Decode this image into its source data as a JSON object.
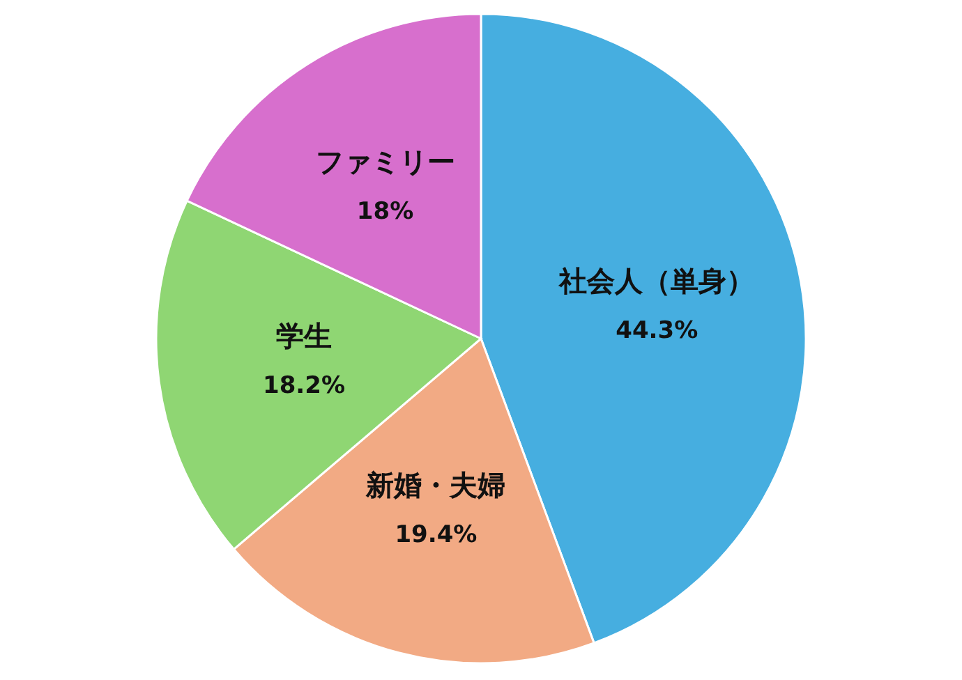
{
  "chart_data": {
    "type": "pie",
    "categories": [
      "社会人（単身）",
      "新婚・夫婦",
      "学生",
      "ファミリー"
    ],
    "values": [
      44.3,
      19.4,
      18.2,
      18
    ],
    "colors": [
      "#46aee0",
      "#f2aa84",
      "#8fd673",
      "#d76fcd"
    ],
    "value_labels": [
      "44.3%",
      "19.4%",
      "18.2%",
      "18%"
    ]
  }
}
